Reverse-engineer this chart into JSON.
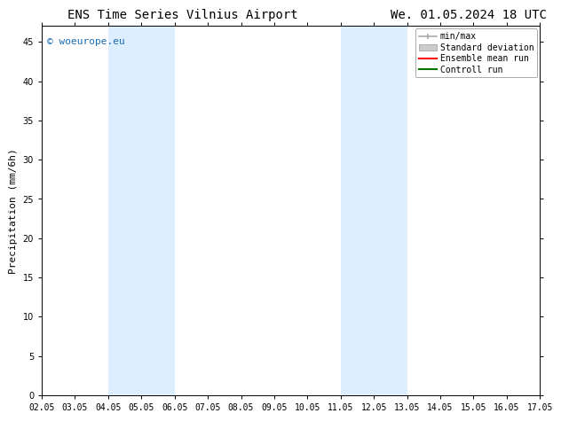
{
  "title_left": "ENS Time Series Vilnius Airport",
  "title_right": "We. 01.05.2024 18 UTC",
  "ylabel": "Precipitation (mm/6h)",
  "xlabel_ticks": [
    "02.05",
    "03.05",
    "04.05",
    "05.05",
    "06.05",
    "07.05",
    "08.05",
    "09.05",
    "10.05",
    "11.05",
    "12.05",
    "13.05",
    "14.05",
    "15.05",
    "16.05",
    "17.05"
  ],
  "xlim": [
    0,
    15
  ],
  "ylim": [
    0,
    47
  ],
  "yticks": [
    0,
    5,
    10,
    15,
    20,
    25,
    30,
    35,
    40,
    45
  ],
  "watermark": "© woeurope.eu",
  "watermark_color": "#1a6ab5",
  "shaded_regions": [
    {
      "xmin": 2.0,
      "xmax": 4.0,
      "color": "#ddeeff"
    },
    {
      "xmin": 9.0,
      "xmax": 11.0,
      "color": "#ddeeff"
    }
  ],
  "legend_entries": [
    {
      "label": "min/max",
      "color": "#aaaaaa"
    },
    {
      "label": "Standard deviation",
      "color": "#cccccc"
    },
    {
      "label": "Ensemble mean run",
      "color": "#ff0000"
    },
    {
      "label": "Controll run",
      "color": "#007700"
    }
  ],
  "bg_color": "#ffffff",
  "title_fontsize": 10,
  "tick_fontsize": 7,
  "ylabel_fontsize": 8,
  "legend_fontsize": 7,
  "watermark_fontsize": 8
}
